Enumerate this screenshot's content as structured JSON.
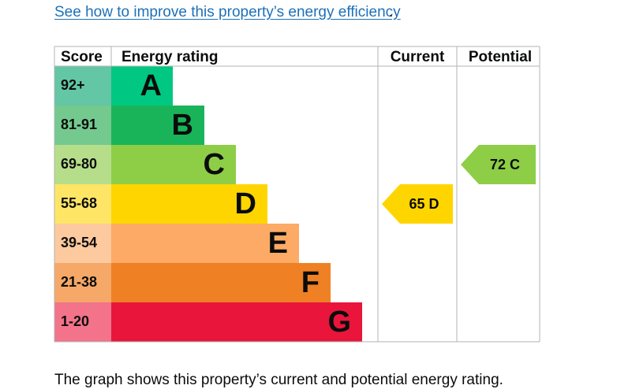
{
  "link": {
    "text": "See how to improve this property’s energy efficiency",
    "tail": "."
  },
  "caption": "The graph shows this property’s current and potential energy rating.",
  "chart_data": {
    "type": "bar",
    "headers": {
      "score": "Score",
      "rating": "Energy rating",
      "current": "Current",
      "potential": "Potential"
    },
    "bands": [
      {
        "score": "92+",
        "letter": "A",
        "band_color": "#00c781",
        "score_color": "#63c6a4",
        "score_text": "#0b0c0c",
        "letter_text": "#0b0c0c"
      },
      {
        "score": "81-91",
        "letter": "B",
        "band_color": "#19b459",
        "score_color": "#74c98f",
        "score_text": "#0b0c0c",
        "letter_text": "#0b0c0c"
      },
      {
        "score": "69-80",
        "letter": "C",
        "band_color": "#8dce46",
        "score_color": "#b6de8a",
        "score_text": "#0b0c0c",
        "letter_text": "#0b0c0c"
      },
      {
        "score": "55-68",
        "letter": "D",
        "band_color": "#ffd500",
        "score_color": "#ffe566",
        "score_text": "#0b0c0c",
        "letter_text": "#0b0c0c"
      },
      {
        "score": "39-54",
        "letter": "E",
        "band_color": "#fcaa65",
        "score_color": "#fdc99e",
        "score_text": "#0b0c0c",
        "letter_text": "#0b0c0c"
      },
      {
        "score": "21-38",
        "letter": "F",
        "band_color": "#ef8023",
        "score_color": "#f5a867",
        "score_text": "#0b0c0c",
        "letter_text": "#0b0c0c"
      },
      {
        "score": "1-20",
        "letter": "G",
        "band_color": "#e9153b",
        "score_color": "#f2738a",
        "score_text": "#0b0c0c",
        "letter_text": "#0b0c0c"
      }
    ],
    "current": {
      "value": 65,
      "letter": "D",
      "label": "65  D",
      "color": "#ffd500"
    },
    "potential": {
      "value": 72,
      "letter": "C",
      "label": "72  C",
      "color": "#8dce46"
    },
    "grid_color": "#b1b4b6"
  }
}
